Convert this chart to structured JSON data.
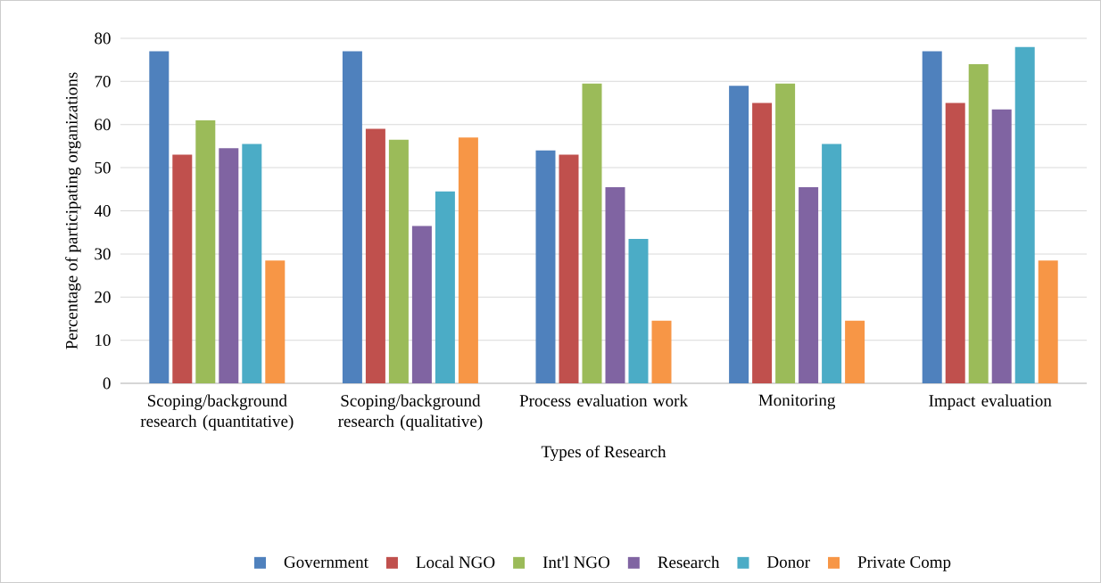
{
  "chart_data": {
    "type": "bar",
    "xlabel": "Types of Research",
    "ylabel": "Percentage of  participating organizations",
    "categories": [
      "Scoping/background research (quantitative)",
      "Scoping/background research (qualitative)",
      "Process evaluation work",
      "Monitoring",
      "Impact evaluation"
    ],
    "series": [
      {
        "name": "Government",
        "color": "#4f81bd",
        "values": [
          77,
          77,
          54,
          69,
          77
        ]
      },
      {
        "name": "Local NGO",
        "color": "#c0504d",
        "values": [
          53,
          59,
          53,
          65,
          65
        ]
      },
      {
        "name": "Int'l NGO",
        "color": "#9bbb59",
        "values": [
          61,
          56.5,
          69.5,
          69.5,
          74
        ]
      },
      {
        "name": "Research",
        "color": "#8064a2",
        "values": [
          54.5,
          36.5,
          45.5,
          45.5,
          63.5
        ]
      },
      {
        "name": "Donor",
        "color": "#4bacc6",
        "values": [
          55.5,
          44.5,
          33.5,
          55.5,
          78
        ]
      },
      {
        "name": "Private Comp",
        "color": "#f79646",
        "values": [
          28.5,
          57,
          14.5,
          14.5,
          28.5
        ]
      }
    ],
    "ylim": [
      0,
      80
    ],
    "yticks": [
      0,
      10,
      20,
      30,
      40,
      50,
      60,
      70,
      80
    ],
    "grid": "y",
    "legend": "bottom"
  }
}
